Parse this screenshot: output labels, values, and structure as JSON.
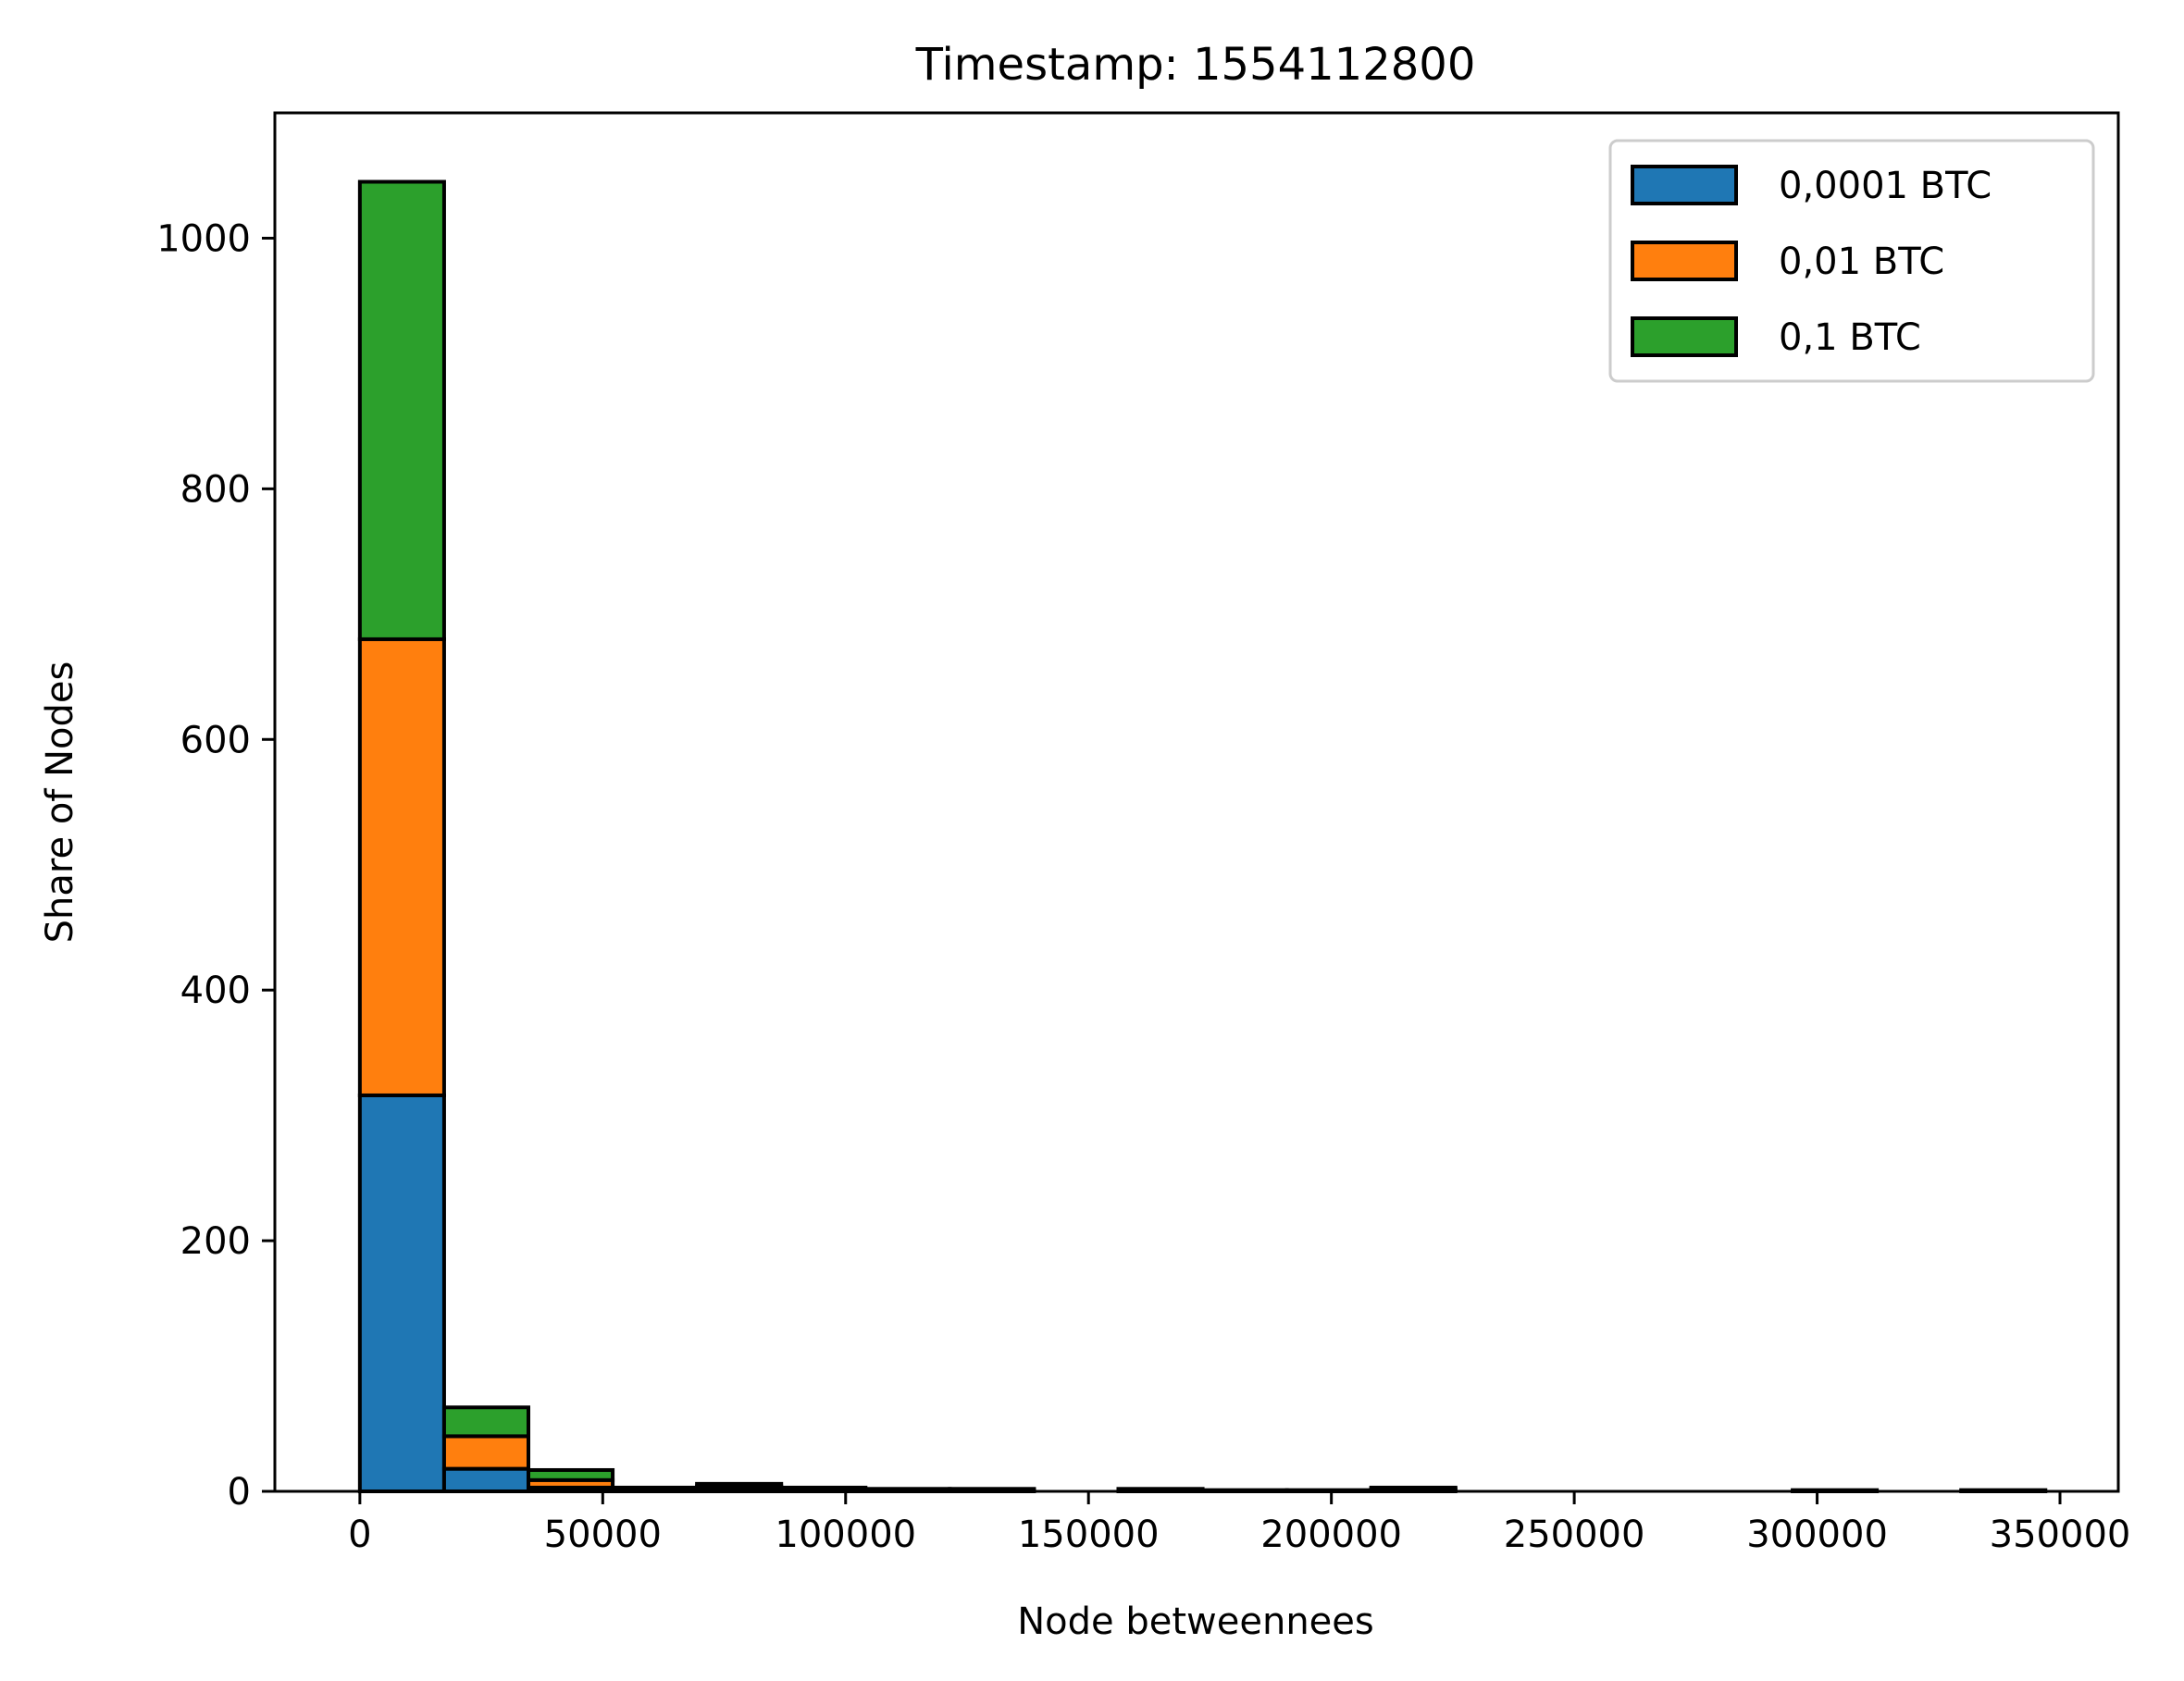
{
  "chart_data": {
    "type": "bar",
    "stacked": true,
    "title": "Timestamp: 1554112800",
    "xlabel": "Node betweennees",
    "ylabel": "Share of Nodes",
    "xlim": [
      -17500,
      362000
    ],
    "ylim": [
      0,
      1100
    ],
    "xticks": [
      0,
      50000,
      100000,
      150000,
      200000,
      250000,
      300000,
      350000
    ],
    "yticks": [
      0,
      200,
      400,
      600,
      800,
      1000
    ],
    "bin_edges": [
      0,
      17350,
      34700,
      52050,
      69400,
      86750,
      104100,
      121450,
      138800,
      156150,
      173500,
      190850,
      208200,
      225550,
      242900,
      260250,
      277600,
      294950,
      312300,
      329650,
      347000
    ],
    "series": [
      {
        "name": "0,0001 BTC",
        "color": "#1f77b4",
        "values": [
          316,
          18,
          3,
          1,
          2,
          1,
          0,
          0,
          0,
          1,
          0,
          0,
          1,
          0,
          0,
          0,
          0,
          0,
          0,
          0
        ]
      },
      {
        "name": "0,01 BTC",
        "color": "#ff7f0e",
        "values": [
          364,
          26,
          6,
          1,
          2,
          1,
          1,
          1,
          0,
          0,
          0,
          0,
          1,
          0,
          0,
          0,
          0,
          0,
          0,
          0
        ]
      },
      {
        "name": "0,1 BTC",
        "color": "#2ca02c",
        "values": [
          365,
          23,
          8,
          1,
          2,
          1,
          1,
          1,
          0,
          1,
          1,
          1,
          1,
          0,
          0,
          0,
          0,
          1,
          0,
          1
        ]
      }
    ],
    "grid": false,
    "legend_position": "top-right"
  }
}
